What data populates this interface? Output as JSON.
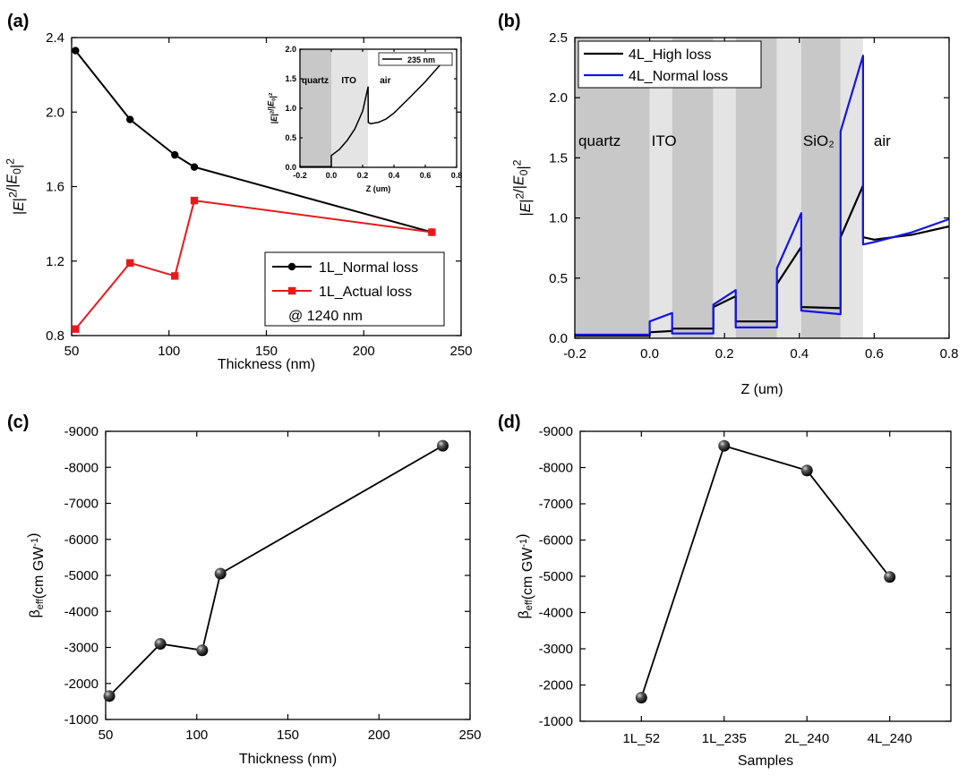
{
  "chart_data": [
    {
      "id": "a",
      "panel_label": "(a)",
      "type": "line",
      "xlabel": "Thickness (nm)",
      "ylabel": "|E|²/|E₀|²",
      "xlim": [
        50,
        250
      ],
      "ylim": [
        0.8,
        2.4
      ],
      "xticks": [
        50,
        100,
        150,
        200,
        250
      ],
      "yticks": [
        0.8,
        1.2,
        1.6,
        2.0,
        2.4
      ],
      "series": [
        {
          "name": "1L_Normal loss",
          "color": "#000000",
          "marker": "circle",
          "x": [
            52,
            80,
            103,
            113,
            235
          ],
          "y": [
            2.33,
            1.96,
            1.77,
            1.705,
            1.355
          ]
        },
        {
          "name": "1L_Actual loss",
          "color": "#e8191d",
          "marker": "square",
          "x": [
            52,
            80,
            103,
            113,
            235
          ],
          "y": [
            0.835,
            1.19,
            1.12,
            1.525,
            1.355
          ]
        }
      ],
      "legend_note": "@ 1240 nm",
      "inset": {
        "type": "line",
        "xlabel": "Z (um)",
        "ylabel": "|E|²/|E₀|²",
        "xlim": [
          -0.2,
          0.8
        ],
        "ylim": [
          0.0,
          2.0
        ],
        "xticks": [
          -0.2,
          0.0,
          0.2,
          0.4,
          0.6,
          0.8
        ],
        "yticks": [
          0.0,
          0.5,
          1.0,
          1.5,
          2.0
        ],
        "regions": [
          {
            "label": "quartz",
            "x0": -0.2,
            "x1": 0.0,
            "shade": "#c8c8c8"
          },
          {
            "label": "ITO",
            "x0": 0.0,
            "x1": 0.235,
            "shade": "#e4e4e4"
          },
          {
            "label": "air",
            "x0": 0.235,
            "x1": 0.8,
            "shade": "#ffffff"
          }
        ],
        "series": [
          {
            "name": "235 nm",
            "color": "#000000",
            "x": [
              -0.2,
              0.0,
              0.0,
              0.05,
              0.1,
              0.15,
              0.2,
              0.235,
              0.236,
              0.25,
              0.3,
              0.35,
              0.4,
              0.5,
              0.6,
              0.7
            ],
            "y": [
              0.01,
              0.01,
              0.2,
              0.3,
              0.45,
              0.65,
              0.95,
              1.36,
              0.76,
              0.74,
              0.76,
              0.82,
              0.92,
              1.18,
              1.45,
              1.75
            ]
          }
        ]
      }
    },
    {
      "id": "b",
      "panel_label": "(b)",
      "type": "line",
      "xlabel": "Z (um)",
      "ylabel": "|E|²/|E₀|²",
      "xlim": [
        -0.2,
        0.8
      ],
      "ylim": [
        0.0,
        2.5
      ],
      "xticks": [
        -0.2,
        0.0,
        0.2,
        0.4,
        0.6,
        0.8
      ],
      "yticks": [
        0.0,
        0.5,
        1.0,
        1.5,
        2.0,
        2.5
      ],
      "regions": [
        {
          "label": "quartz",
          "x0": -0.2,
          "x1": 0.0,
          "shade": "#c8c8c8"
        },
        {
          "label": "ITO",
          "x0": 0.0,
          "x1": 0.06,
          "shade": "#e4e4e4"
        },
        {
          "label": "",
          "x0": 0.06,
          "x1": 0.17,
          "shade": "#c8c8c8"
        },
        {
          "label": "",
          "x0": 0.17,
          "x1": 0.23,
          "shade": "#e4e4e4"
        },
        {
          "label": "",
          "x0": 0.23,
          "x1": 0.34,
          "shade": "#c8c8c8"
        },
        {
          "label": "",
          "x0": 0.34,
          "x1": 0.405,
          "shade": "#e4e4e4"
        },
        {
          "label": "SiO₂",
          "x0": 0.405,
          "x1": 0.51,
          "shade": "#c8c8c8"
        },
        {
          "label": "",
          "x0": 0.51,
          "x1": 0.57,
          "shade": "#e4e4e4"
        },
        {
          "label": "air",
          "x0": 0.57,
          "x1": 0.8,
          "shade": "#ffffff"
        }
      ],
      "series": [
        {
          "name": "4L_High loss",
          "color": "#000000",
          "x": [
            -0.2,
            0.0,
            0.0,
            0.06,
            0.06,
            0.17,
            0.17,
            0.23,
            0.23,
            0.34,
            0.34,
            0.405,
            0.405,
            0.51,
            0.51,
            0.57,
            0.57,
            0.6,
            0.7,
            0.8
          ],
          "y": [
            0.02,
            0.02,
            0.05,
            0.06,
            0.08,
            0.08,
            0.26,
            0.35,
            0.14,
            0.14,
            0.45,
            0.76,
            0.26,
            0.25,
            0.84,
            1.27,
            0.84,
            0.82,
            0.86,
            0.93
          ]
        },
        {
          "name": "4L_Normal loss",
          "color": "#1515e6",
          "x": [
            -0.2,
            0.0,
            0.0,
            0.06,
            0.06,
            0.17,
            0.17,
            0.23,
            0.23,
            0.34,
            0.34,
            0.405,
            0.405,
            0.51,
            0.51,
            0.57,
            0.57,
            0.6,
            0.7,
            0.8
          ],
          "y": [
            0.03,
            0.03,
            0.14,
            0.21,
            0.04,
            0.04,
            0.28,
            0.4,
            0.09,
            0.09,
            0.58,
            1.04,
            0.23,
            0.2,
            1.72,
            2.35,
            0.78,
            0.8,
            0.88,
            0.99
          ]
        }
      ]
    },
    {
      "id": "c",
      "panel_label": "(c)",
      "type": "line",
      "xlabel": "Thickness (nm)",
      "ylabel": "βeff(cm GW⁻¹)",
      "xlim": [
        50,
        250
      ],
      "ylim": [
        -1000,
        -9000
      ],
      "xticks": [
        50,
        100,
        150,
        200,
        250
      ],
      "yticks": [
        -1000,
        -2000,
        -3000,
        -4000,
        -5000,
        -6000,
        -7000,
        -8000,
        -9000
      ],
      "series": [
        {
          "name": "c",
          "color": "#000000",
          "marker": "sphere",
          "x": [
            52,
            80,
            103,
            113,
            235
          ],
          "y": [
            -1650,
            -3100,
            -2920,
            -5050,
            -8600
          ]
        }
      ]
    },
    {
      "id": "d",
      "panel_label": "(d)",
      "type": "line",
      "xlabel": "Samples",
      "ylabel": "βeff(cm GW⁻¹)",
      "categories": [
        "1L_52",
        "1L_235",
        "2L_240",
        "4L_240"
      ],
      "ylim": [
        -1000,
        -9000
      ],
      "yticks": [
        -1000,
        -2000,
        -3000,
        -4000,
        -5000,
        -6000,
        -7000,
        -8000,
        -9000
      ],
      "series": [
        {
          "name": "d",
          "color": "#000000",
          "marker": "sphere",
          "values": [
            -1650,
            -8600,
            -7920,
            -4980
          ]
        }
      ]
    }
  ]
}
